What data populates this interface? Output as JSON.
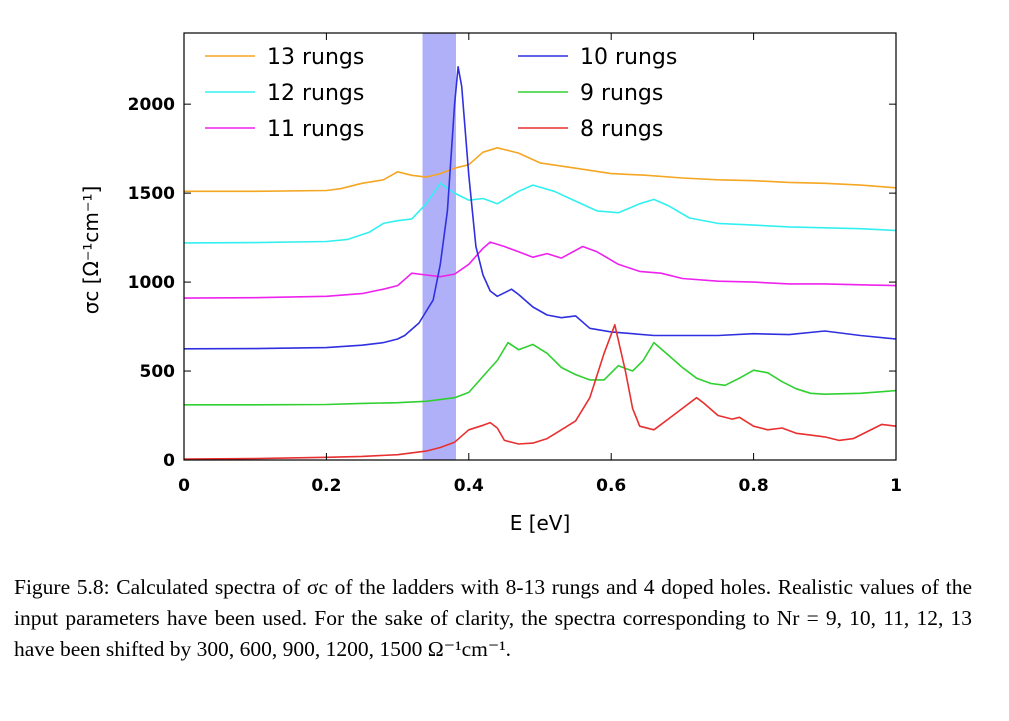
{
  "chart_data": {
    "type": "line",
    "xlabel": "E [eV]",
    "ylabel": "σc [Ω⁻¹cm⁻¹]",
    "xlim": [
      0,
      1
    ],
    "ylim": [
      0,
      2400
    ],
    "x_ticks": [
      "0",
      "0.2",
      "0.4",
      "0.6",
      "0.8",
      "1"
    ],
    "y_ticks": [
      "0",
      "500",
      "1000",
      "1500",
      "2000"
    ],
    "highlight_band": {
      "x_range": [
        0.335,
        0.382
      ],
      "color": "#b0b0f8"
    },
    "legend_position": "top",
    "series": [
      {
        "name": "13 rungs",
        "color": "#f5a623",
        "points": [
          [
            0,
            1510
          ],
          [
            0.1,
            1510
          ],
          [
            0.2,
            1515
          ],
          [
            0.22,
            1525
          ],
          [
            0.25,
            1555
          ],
          [
            0.28,
            1575
          ],
          [
            0.3,
            1620
          ],
          [
            0.32,
            1600
          ],
          [
            0.34,
            1590
          ],
          [
            0.36,
            1610
          ],
          [
            0.38,
            1640
          ],
          [
            0.4,
            1660
          ],
          [
            0.42,
            1730
          ],
          [
            0.44,
            1755
          ],
          [
            0.47,
            1725
          ],
          [
            0.5,
            1670
          ],
          [
            0.55,
            1640
          ],
          [
            0.6,
            1610
          ],
          [
            0.65,
            1600
          ],
          [
            0.7,
            1585
          ],
          [
            0.75,
            1575
          ],
          [
            0.8,
            1570
          ],
          [
            0.85,
            1560
          ],
          [
            0.9,
            1555
          ],
          [
            0.95,
            1545
          ],
          [
            1,
            1530
          ]
        ]
      },
      {
        "name": "12 rungs",
        "color": "#33f0f0",
        "points": [
          [
            0,
            1220
          ],
          [
            0.1,
            1222
          ],
          [
            0.2,
            1228
          ],
          [
            0.23,
            1240
          ],
          [
            0.26,
            1280
          ],
          [
            0.28,
            1330
          ],
          [
            0.3,
            1345
          ],
          [
            0.32,
            1355
          ],
          [
            0.34,
            1440
          ],
          [
            0.36,
            1555
          ],
          [
            0.38,
            1500
          ],
          [
            0.4,
            1460
          ],
          [
            0.42,
            1470
          ],
          [
            0.44,
            1440
          ],
          [
            0.47,
            1510
          ],
          [
            0.49,
            1545
          ],
          [
            0.52,
            1510
          ],
          [
            0.55,
            1455
          ],
          [
            0.58,
            1400
          ],
          [
            0.61,
            1390
          ],
          [
            0.64,
            1440
          ],
          [
            0.66,
            1465
          ],
          [
            0.68,
            1430
          ],
          [
            0.71,
            1360
          ],
          [
            0.75,
            1330
          ],
          [
            0.8,
            1320
          ],
          [
            0.85,
            1310
          ],
          [
            0.9,
            1305
          ],
          [
            0.95,
            1300
          ],
          [
            1,
            1290
          ]
        ]
      },
      {
        "name": "11 rungs",
        "color": "#ee22ee",
        "points": [
          [
            0,
            910
          ],
          [
            0.1,
            912
          ],
          [
            0.2,
            920
          ],
          [
            0.25,
            935
          ],
          [
            0.28,
            960
          ],
          [
            0.3,
            980
          ],
          [
            0.32,
            1050
          ],
          [
            0.34,
            1040
          ],
          [
            0.36,
            1030
          ],
          [
            0.38,
            1045
          ],
          [
            0.4,
            1100
          ],
          [
            0.42,
            1190
          ],
          [
            0.43,
            1225
          ],
          [
            0.45,
            1200
          ],
          [
            0.47,
            1170
          ],
          [
            0.49,
            1140
          ],
          [
            0.51,
            1160
          ],
          [
            0.53,
            1135
          ],
          [
            0.56,
            1200
          ],
          [
            0.58,
            1170
          ],
          [
            0.61,
            1100
          ],
          [
            0.64,
            1060
          ],
          [
            0.67,
            1050
          ],
          [
            0.7,
            1020
          ],
          [
            0.75,
            1005
          ],
          [
            0.8,
            1000
          ],
          [
            0.85,
            990
          ],
          [
            0.9,
            990
          ],
          [
            0.95,
            985
          ],
          [
            1,
            980
          ]
        ]
      },
      {
        "name": "10 rungs",
        "color": "#3030e0",
        "points": [
          [
            0,
            625
          ],
          [
            0.1,
            626
          ],
          [
            0.2,
            632
          ],
          [
            0.25,
            645
          ],
          [
            0.28,
            660
          ],
          [
            0.3,
            680
          ],
          [
            0.31,
            700
          ],
          [
            0.33,
            770
          ],
          [
            0.35,
            900
          ],
          [
            0.36,
            1100
          ],
          [
            0.37,
            1400
          ],
          [
            0.38,
            2000
          ],
          [
            0.385,
            2210
          ],
          [
            0.39,
            2100
          ],
          [
            0.4,
            1600
          ],
          [
            0.41,
            1200
          ],
          [
            0.42,
            1040
          ],
          [
            0.43,
            950
          ],
          [
            0.44,
            920
          ],
          [
            0.45,
            940
          ],
          [
            0.46,
            960
          ],
          [
            0.47,
            930
          ],
          [
            0.49,
            860
          ],
          [
            0.51,
            815
          ],
          [
            0.53,
            800
          ],
          [
            0.55,
            810
          ],
          [
            0.57,
            740
          ],
          [
            0.6,
            720
          ],
          [
            0.63,
            710
          ],
          [
            0.66,
            700
          ],
          [
            0.7,
            700
          ],
          [
            0.75,
            700
          ],
          [
            0.8,
            710
          ],
          [
            0.85,
            705
          ],
          [
            0.9,
            725
          ],
          [
            0.95,
            700
          ],
          [
            1,
            680
          ]
        ]
      },
      {
        "name": "9 rungs",
        "color": "#30d030",
        "points": [
          [
            0,
            310
          ],
          [
            0.1,
            310
          ],
          [
            0.2,
            312
          ],
          [
            0.25,
            318
          ],
          [
            0.3,
            322
          ],
          [
            0.34,
            330
          ],
          [
            0.38,
            350
          ],
          [
            0.4,
            380
          ],
          [
            0.42,
            470
          ],
          [
            0.44,
            560
          ],
          [
            0.455,
            660
          ],
          [
            0.47,
            620
          ],
          [
            0.49,
            650
          ],
          [
            0.51,
            600
          ],
          [
            0.53,
            520
          ],
          [
            0.55,
            480
          ],
          [
            0.57,
            450
          ],
          [
            0.59,
            450
          ],
          [
            0.61,
            530
          ],
          [
            0.63,
            500
          ],
          [
            0.645,
            560
          ],
          [
            0.66,
            660
          ],
          [
            0.68,
            590
          ],
          [
            0.7,
            520
          ],
          [
            0.72,
            460
          ],
          [
            0.74,
            430
          ],
          [
            0.76,
            420
          ],
          [
            0.78,
            460
          ],
          [
            0.8,
            505
          ],
          [
            0.82,
            490
          ],
          [
            0.84,
            440
          ],
          [
            0.86,
            400
          ],
          [
            0.88,
            375
          ],
          [
            0.9,
            370
          ],
          [
            0.95,
            375
          ],
          [
            1,
            390
          ]
        ]
      },
      {
        "name": "8 rungs",
        "color": "#e83030",
        "points": [
          [
            0,
            5
          ],
          [
            0.1,
            8
          ],
          [
            0.2,
            15
          ],
          [
            0.25,
            20
          ],
          [
            0.3,
            30
          ],
          [
            0.34,
            50
          ],
          [
            0.36,
            70
          ],
          [
            0.38,
            100
          ],
          [
            0.4,
            170
          ],
          [
            0.42,
            195
          ],
          [
            0.43,
            210
          ],
          [
            0.44,
            180
          ],
          [
            0.45,
            110
          ],
          [
            0.47,
            90
          ],
          [
            0.49,
            95
          ],
          [
            0.51,
            120
          ],
          [
            0.53,
            170
          ],
          [
            0.55,
            220
          ],
          [
            0.57,
            350
          ],
          [
            0.59,
            600
          ],
          [
            0.605,
            760
          ],
          [
            0.62,
            500
          ],
          [
            0.63,
            290
          ],
          [
            0.64,
            190
          ],
          [
            0.66,
            170
          ],
          [
            0.68,
            230
          ],
          [
            0.7,
            290
          ],
          [
            0.72,
            350
          ],
          [
            0.73,
            320
          ],
          [
            0.75,
            250
          ],
          [
            0.77,
            230
          ],
          [
            0.78,
            240
          ],
          [
            0.8,
            190
          ],
          [
            0.82,
            170
          ],
          [
            0.84,
            180
          ],
          [
            0.86,
            150
          ],
          [
            0.88,
            140
          ],
          [
            0.9,
            130
          ],
          [
            0.92,
            110
          ],
          [
            0.94,
            120
          ],
          [
            0.96,
            160
          ],
          [
            0.98,
            200
          ],
          [
            1,
            190
          ]
        ]
      }
    ]
  },
  "caption": {
    "text": "Figure 5.8: Calculated spectra of σc of the ladders with 8-13 rungs and 4 doped holes. Realistic values of the input parameters have been used. For the sake of clarity, the spectra corresponding to Nr = 9, 10, 11, 12, 13 have been shifted by 300, 600, 900, 1200, 1500 Ω⁻¹cm⁻¹."
  }
}
